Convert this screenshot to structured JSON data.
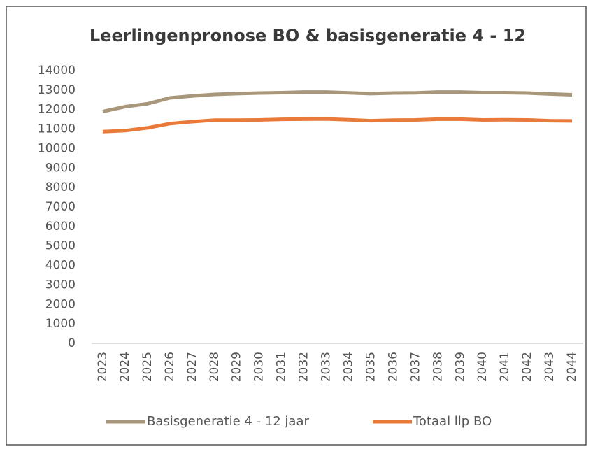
{
  "chart_data": {
    "type": "line",
    "title": "Leerlingenpronose BO & basisgeneratie 4 - 12",
    "categories": [
      "2023",
      "2024",
      "2025",
      "2026",
      "2027",
      "2028",
      "2029",
      "2030",
      "2031",
      "2032",
      "2033",
      "2034",
      "2035",
      "2036",
      "2037",
      "2038",
      "2039",
      "2040",
      "2041",
      "2042",
      "2043",
      "2044"
    ],
    "series": [
      {
        "name": "Basisgeneratie 4 - 12 jaar",
        "color": "#a8977a",
        "values": [
          11900,
          12150,
          12300,
          12600,
          12700,
          12780,
          12820,
          12850,
          12870,
          12900,
          12900,
          12860,
          12820,
          12850,
          12860,
          12900,
          12900,
          12870,
          12870,
          12850,
          12800,
          12760
        ]
      },
      {
        "name": "Totaal llp BO",
        "color": "#e97a3a",
        "values": [
          10870,
          10920,
          11060,
          11280,
          11380,
          11460,
          11460,
          11470,
          11500,
          11510,
          11520,
          11480,
          11430,
          11460,
          11470,
          11510,
          11510,
          11470,
          11480,
          11470,
          11430,
          11420
        ]
      }
    ],
    "ylim": [
      0,
      14000
    ],
    "yticks": [
      0,
      1000,
      2000,
      3000,
      4000,
      5000,
      6000,
      7000,
      8000,
      9000,
      10000,
      11000,
      12000,
      13000,
      14000
    ],
    "grid": false,
    "legend": "bottom"
  }
}
